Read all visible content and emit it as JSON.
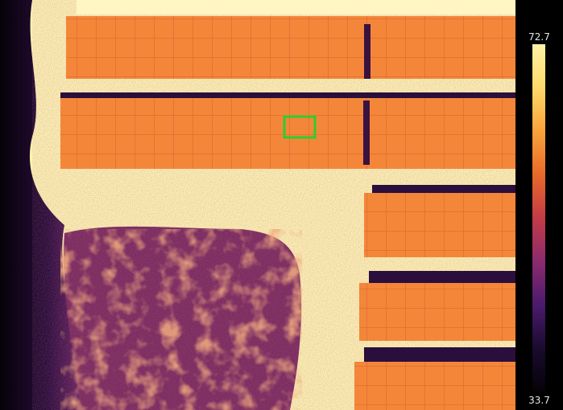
{
  "scale": {
    "max_label": "72.7",
    "min_label": "33.7",
    "gradient": [
      "#fff2a6",
      "#fdd86a",
      "#f9a33a",
      "#e86a2a",
      "#c23c45",
      "#8c2b6e",
      "#4c1a6e",
      "#1a0b2e",
      "#050208"
    ]
  },
  "colors": {
    "hot_ground": "#fdf2b0",
    "panel": "#f4863a",
    "panel_grid": "#d8602a",
    "shadow": "#2a0f3c",
    "vegetation_dark": "#2a0c3a",
    "vegetation_mid": "#8a2f5e",
    "background_cold": "#0a0410",
    "roi_box": "#2ecc2e"
  },
  "icons": {
    "roi": "region-of-interest-box"
  }
}
